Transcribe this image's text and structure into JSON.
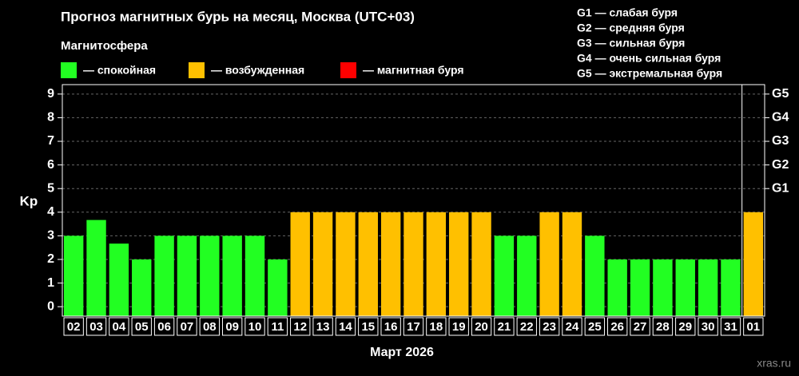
{
  "chart_data": {
    "type": "bar",
    "title": "Прогноз магнитных бурь на месяц, Москва (UTC+03)",
    "legend_title": "Магнитосфера",
    "legend": [
      {
        "name": "— спокойная",
        "color": "#22ff22"
      },
      {
        "name": "— возбужденная",
        "color": "#ffc000"
      },
      {
        "name": "— магнитная буря",
        "color": "#ff0000"
      }
    ],
    "storm_scale": [
      "G1 — слабая буря",
      "G2 — средняя буря",
      "G3 — сильная буря",
      "G4 — очень сильная буря",
      "G5 — экстремальная буря"
    ],
    "ylabel": "Kp",
    "xlabel": "Март 2026",
    "watermark": "xras.ru",
    "categories": [
      "02",
      "03",
      "04",
      "05",
      "06",
      "07",
      "08",
      "09",
      "10",
      "11",
      "12",
      "13",
      "14",
      "15",
      "16",
      "17",
      "18",
      "19",
      "20",
      "21",
      "22",
      "23",
      "24",
      "25",
      "26",
      "27",
      "28",
      "29",
      "30",
      "31",
      "01"
    ],
    "values": [
      3,
      3.67,
      2.67,
      2,
      3,
      3,
      3,
      3,
      3,
      2,
      4,
      4,
      4,
      4,
      4,
      4,
      4,
      4,
      4,
      3,
      3,
      4,
      4,
      3,
      2,
      2,
      2,
      2,
      2,
      2,
      4
    ],
    "colors": [
      "#22ff22",
      "#22ff22",
      "#22ff22",
      "#22ff22",
      "#22ff22",
      "#22ff22",
      "#22ff22",
      "#22ff22",
      "#22ff22",
      "#22ff22",
      "#ffc000",
      "#ffc000",
      "#ffc000",
      "#ffc000",
      "#ffc000",
      "#ffc000",
      "#ffc000",
      "#ffc000",
      "#ffc000",
      "#22ff22",
      "#22ff22",
      "#ffc000",
      "#ffc000",
      "#22ff22",
      "#22ff22",
      "#22ff22",
      "#22ff22",
      "#22ff22",
      "#22ff22",
      "#22ff22",
      "#ffc000"
    ],
    "ylim": [
      -0.4,
      9.4
    ],
    "yticks": [
      0,
      1,
      2,
      3,
      4,
      5,
      6,
      7,
      8,
      9
    ],
    "y2ticks": [
      {
        "value": 5,
        "label": "G1"
      },
      {
        "value": 6,
        "label": "G2"
      },
      {
        "value": 7,
        "label": "G3"
      },
      {
        "value": 8,
        "label": "G4"
      },
      {
        "value": 9,
        "label": "G5"
      }
    ],
    "grid": true
  }
}
